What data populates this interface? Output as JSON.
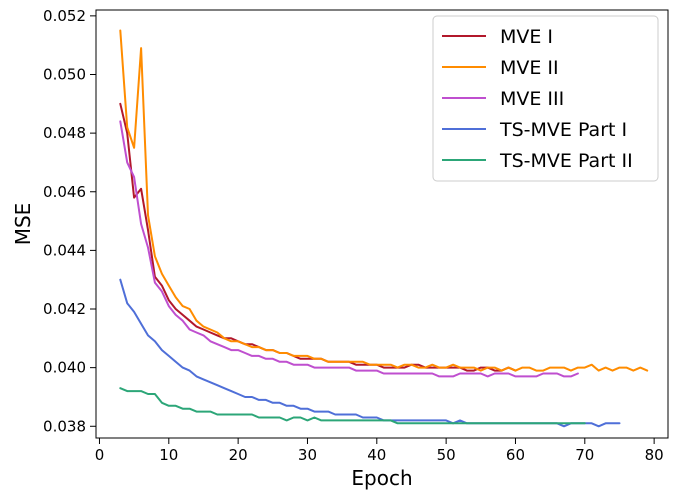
{
  "chart_data": {
    "type": "line",
    "title": "",
    "xlabel": "Epoch",
    "ylabel": "MSE",
    "xlim": [
      -0.5,
      82
    ],
    "ylim": [
      0.0376,
      0.0522
    ],
    "xticks": [
      0,
      10,
      20,
      30,
      40,
      50,
      60,
      70,
      80
    ],
    "yticks": [
      0.038,
      0.04,
      0.042,
      0.044,
      0.046,
      0.048,
      0.05,
      0.052
    ],
    "ytick_labels": [
      "0.038",
      "0.040",
      "0.042",
      "0.044",
      "0.046",
      "0.048",
      "0.050",
      "0.052"
    ],
    "grid": false,
    "legend": "top-right",
    "series": [
      {
        "name": "MVE I",
        "color": "#b2182b",
        "x_start": 3,
        "values": [
          0.049,
          0.048,
          0.0458,
          0.0461,
          0.0447,
          0.0431,
          0.0428,
          0.0423,
          0.042,
          0.0418,
          0.0416,
          0.0414,
          0.0413,
          0.0412,
          0.0411,
          0.041,
          0.041,
          0.0409,
          0.0408,
          0.0408,
          0.0407,
          0.0406,
          0.0406,
          0.0405,
          0.0405,
          0.0404,
          0.0403,
          0.0403,
          0.0403,
          0.0403,
          0.0402,
          0.0402,
          0.0402,
          0.0402,
          0.0401,
          0.0401,
          0.0401,
          0.0401,
          0.04,
          0.04,
          0.04,
          0.04,
          0.0401,
          0.0401,
          0.04,
          0.04,
          0.04,
          0.04,
          0.04,
          0.04,
          0.0399,
          0.0399,
          0.04,
          0.04,
          0.0399,
          0.0399,
          0.04,
          0.0399
        ]
      },
      {
        "name": "MVE II",
        "color": "#ff8c00",
        "x_start": 3,
        "values": [
          0.0515,
          0.0482,
          0.0475,
          0.0509,
          0.0452,
          0.0438,
          0.0432,
          0.0428,
          0.0424,
          0.0421,
          0.042,
          0.0416,
          0.0414,
          0.0413,
          0.0412,
          0.041,
          0.0409,
          0.0409,
          0.0408,
          0.0407,
          0.0407,
          0.0406,
          0.0406,
          0.0405,
          0.0405,
          0.0404,
          0.0404,
          0.0404,
          0.0403,
          0.0403,
          0.0402,
          0.0402,
          0.0402,
          0.0402,
          0.0402,
          0.0402,
          0.0401,
          0.0401,
          0.0401,
          0.0401,
          0.04,
          0.0401,
          0.0401,
          0.04,
          0.04,
          0.0401,
          0.04,
          0.04,
          0.0401,
          0.04,
          0.04,
          0.04,
          0.0399,
          0.04,
          0.04,
          0.0399,
          0.04,
          0.0399,
          0.04,
          0.04,
          0.0399,
          0.0399,
          0.04,
          0.04,
          0.04,
          0.0399,
          0.04,
          0.04,
          0.0401,
          0.0399,
          0.04,
          0.0399,
          0.04,
          0.04,
          0.0399,
          0.04,
          0.0399
        ]
      },
      {
        "name": "MVE III",
        "color": "#bf4fcf",
        "x_start": 3,
        "values": [
          0.0484,
          0.047,
          0.0465,
          0.0449,
          0.0441,
          0.0429,
          0.0426,
          0.0421,
          0.0418,
          0.0416,
          0.0413,
          0.0412,
          0.0411,
          0.0409,
          0.0408,
          0.0407,
          0.0406,
          0.0406,
          0.0405,
          0.0404,
          0.0404,
          0.0403,
          0.0403,
          0.0402,
          0.0402,
          0.0401,
          0.0401,
          0.0401,
          0.04,
          0.04,
          0.04,
          0.04,
          0.04,
          0.04,
          0.0399,
          0.0399,
          0.0399,
          0.0399,
          0.0398,
          0.0398,
          0.0398,
          0.0398,
          0.0398,
          0.0398,
          0.0398,
          0.0398,
          0.0397,
          0.0397,
          0.0397,
          0.0398,
          0.0398,
          0.0398,
          0.0398,
          0.0397,
          0.0398,
          0.0398,
          0.0398,
          0.0397,
          0.0397,
          0.0397,
          0.0397,
          0.0398,
          0.0398,
          0.0398,
          0.0397,
          0.0397,
          0.0398
        ]
      },
      {
        "name": "TS-MVE Part I",
        "color": "#4f6fd8",
        "x_start": 3,
        "values": [
          0.043,
          0.0422,
          0.0419,
          0.0415,
          0.0411,
          0.0409,
          0.0406,
          0.0404,
          0.0402,
          0.04,
          0.0399,
          0.0397,
          0.0396,
          0.0395,
          0.0394,
          0.0393,
          0.0392,
          0.0391,
          0.039,
          0.039,
          0.0389,
          0.0389,
          0.0388,
          0.0388,
          0.0387,
          0.0387,
          0.0386,
          0.0386,
          0.0385,
          0.0385,
          0.0385,
          0.0384,
          0.0384,
          0.0384,
          0.0384,
          0.0383,
          0.0383,
          0.0383,
          0.0382,
          0.0382,
          0.0382,
          0.0382,
          0.0382,
          0.0382,
          0.0382,
          0.0382,
          0.0382,
          0.0382,
          0.0381,
          0.0382,
          0.0381,
          0.0381,
          0.0381,
          0.0381,
          0.0381,
          0.0381,
          0.0381,
          0.0381,
          0.0381,
          0.0381,
          0.0381,
          0.0381,
          0.0381,
          0.0381,
          0.038,
          0.0381,
          0.0381,
          0.0381,
          0.0381,
          0.038,
          0.0381,
          0.0381,
          0.0381
        ]
      },
      {
        "name": "TS-MVE Part II",
        "color": "#2ca678",
        "x_start": 3,
        "values": [
          0.0393,
          0.0392,
          0.0392,
          0.0392,
          0.0391,
          0.0391,
          0.0388,
          0.0387,
          0.0387,
          0.0386,
          0.0386,
          0.0385,
          0.0385,
          0.0385,
          0.0384,
          0.0384,
          0.0384,
          0.0384,
          0.0384,
          0.0384,
          0.0383,
          0.0383,
          0.0383,
          0.0383,
          0.0382,
          0.0383,
          0.0383,
          0.0382,
          0.0383,
          0.0382,
          0.0382,
          0.0382,
          0.0382,
          0.0382,
          0.0382,
          0.0382,
          0.0382,
          0.0382,
          0.0382,
          0.0382,
          0.0381,
          0.0381,
          0.0381,
          0.0381,
          0.0381,
          0.0381,
          0.0381,
          0.0381,
          0.0381,
          0.0381,
          0.0381,
          0.0381,
          0.0381,
          0.0381,
          0.0381,
          0.0381,
          0.0381,
          0.0381,
          0.0381,
          0.0381,
          0.0381,
          0.0381,
          0.0381,
          0.0381,
          0.0381,
          0.0381,
          0.0381,
          0.0381
        ]
      }
    ]
  }
}
